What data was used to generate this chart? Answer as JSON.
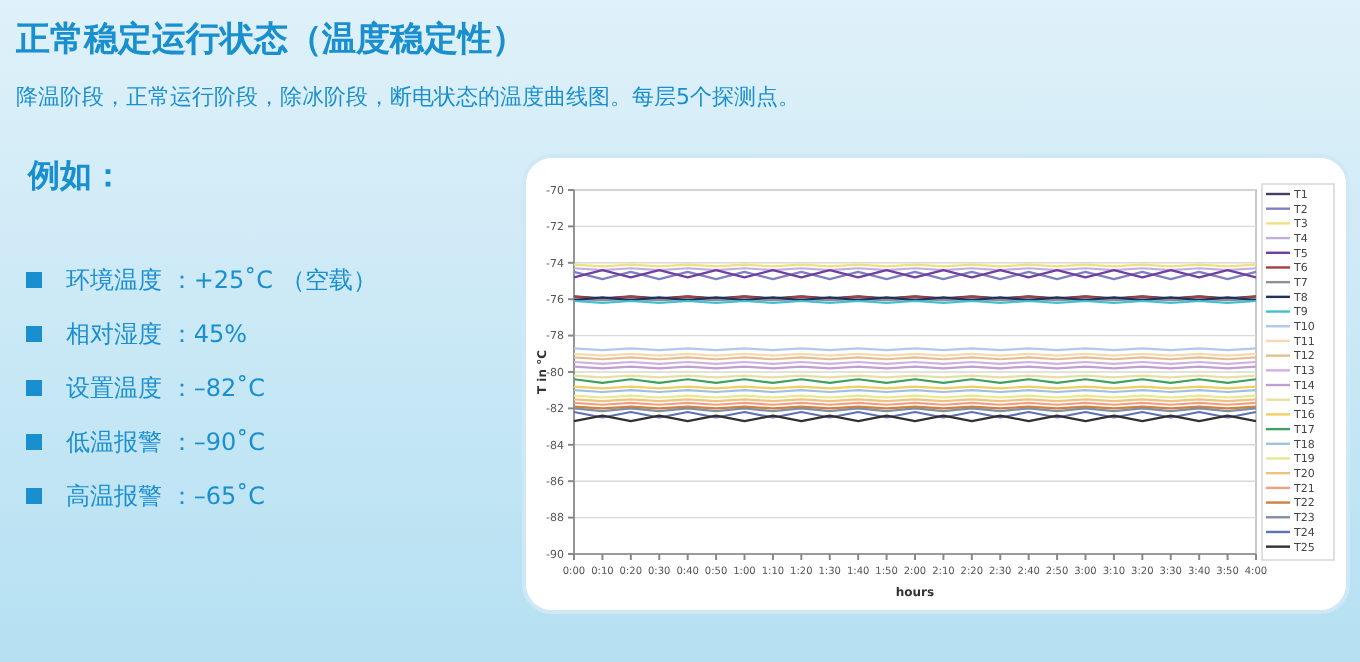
{
  "chart_data": {
    "type": "line",
    "title": "正常稳定运行状态（温度稳定性）",
    "subtitle": "降温阶段，正常运行阶段，除冰阶段，断电状态的温度曲线图。每层5个探测点。",
    "annotations": [
      "例如：",
      "环境温度 ：+25˚C （空载）",
      "相对湿度 ：45%",
      "设置温度 ：–82˚C",
      "低温报警 ：–90˚C",
      "高温报警 ：–65˚C"
    ],
    "xlabel": "hours",
    "ylabel": "T in °C",
    "ylim": [
      -90,
      -70
    ],
    "yticks": [
      -90,
      -88,
      -86,
      -84,
      -82,
      -80,
      -78,
      -76,
      -74,
      -72,
      -70
    ],
    "xlim": [
      0,
      4
    ],
    "xticks": [
      {
        "value": 0,
        "label": "0:00"
      },
      {
        "value": 0.1667,
        "label": "0:10"
      },
      {
        "value": 0.3333,
        "label": "0:20"
      },
      {
        "value": 0.5,
        "label": "0:30"
      },
      {
        "value": 0.6667,
        "label": "0:40"
      },
      {
        "value": 0.8333,
        "label": "0:50"
      },
      {
        "value": 1,
        "label": "1:00"
      },
      {
        "value": 1.1667,
        "label": "1:10"
      },
      {
        "value": 1.3333,
        "label": "1:20"
      },
      {
        "value": 1.5,
        "label": "1:30"
      },
      {
        "value": 1.6667,
        "label": "1:40"
      },
      {
        "value": 1.8333,
        "label": "1:50"
      },
      {
        "value": 2,
        "label": "2:00"
      },
      {
        "value": 2.1667,
        "label": "2:10"
      },
      {
        "value": 2.3333,
        "label": "2:20"
      },
      {
        "value": 2.5,
        "label": "2:30"
      },
      {
        "value": 2.6667,
        "label": "2:40"
      },
      {
        "value": 2.8333,
        "label": "2:50"
      },
      {
        "value": 3,
        "label": "3:00"
      },
      {
        "value": 3.1667,
        "label": "3:10"
      },
      {
        "value": 3.3333,
        "label": "3:20"
      },
      {
        "value": 3.5,
        "label": "3:30"
      },
      {
        "value": 3.6667,
        "label": "3:40"
      },
      {
        "value": 3.8333,
        "label": "3:50"
      },
      {
        "value": 4,
        "label": "4:00"
      }
    ],
    "x": [
      0,
      0.1667,
      0.3333,
      0.5,
      0.6667,
      0.8333,
      1,
      1.1667,
      1.3333,
      1.5,
      1.6667,
      1.8333,
      2,
      2.1667,
      2.3333,
      2.5,
      2.6667,
      2.8333,
      3,
      3.1667,
      3.3333,
      3.5,
      3.6667,
      3.8333,
      4
    ],
    "grid": "y",
    "legend": "right",
    "marker": "none",
    "line_style": "solid",
    "series": [
      {
        "name": "T1",
        "color": "#404060",
        "values": [
          -75.85,
          -75.95,
          -75.85,
          -75.95,
          -75.85,
          -75.95,
          -75.85,
          -75.95,
          -75.85,
          -75.95,
          -75.85,
          -75.95,
          -75.85,
          -75.95,
          -75.85,
          -75.95,
          -75.85,
          -75.95,
          -75.85,
          -75.95,
          -75.85,
          -75.95,
          -75.85,
          -75.95,
          -75.85
        ]
      },
      {
        "name": "T2",
        "color": "#8080c0",
        "values": [
          -74.5,
          -74.9,
          -74.5,
          -74.9,
          -74.5,
          -74.9,
          -74.5,
          -74.9,
          -74.5,
          -74.9,
          -74.5,
          -74.9,
          -74.5,
          -74.9,
          -74.5,
          -74.9,
          -74.5,
          -74.9,
          -74.5,
          -74.9,
          -74.5,
          -74.9,
          -74.5,
          -74.9,
          -74.5
        ]
      },
      {
        "name": "T3",
        "color": "#f0e080",
        "values": [
          -74.1,
          -74.2,
          -74.1,
          -74.2,
          -74.1,
          -74.2,
          -74.1,
          -74.2,
          -74.1,
          -74.2,
          -74.1,
          -74.2,
          -74.1,
          -74.2,
          -74.1,
          -74.2,
          -74.1,
          -74.2,
          -74.1,
          -74.2,
          -74.1,
          -74.2,
          -74.1,
          -74.2,
          -74.1
        ]
      },
      {
        "name": "T4",
        "color": "#c0b0e0",
        "values": [
          -74.3,
          -74.4,
          -74.3,
          -74.4,
          -74.3,
          -74.4,
          -74.3,
          -74.4,
          -74.3,
          -74.4,
          -74.3,
          -74.4,
          -74.3,
          -74.4,
          -74.3,
          -74.4,
          -74.3,
          -74.4,
          -74.3,
          -74.4,
          -74.3,
          -74.4,
          -74.3,
          -74.4,
          -74.3
        ]
      },
      {
        "name": "T5",
        "color": "#7040a0",
        "values": [
          -74.8,
          -74.4,
          -74.8,
          -74.4,
          -74.8,
          -74.4,
          -74.8,
          -74.4,
          -74.8,
          -74.4,
          -74.8,
          -74.4,
          -74.8,
          -74.4,
          -74.8,
          -74.4,
          -74.8,
          -74.4,
          -74.8,
          -74.4,
          -74.8,
          -74.4,
          -74.8,
          -74.4,
          -74.8
        ]
      },
      {
        "name": "T6",
        "color": "#a04040",
        "values": [
          -75.85,
          -76,
          -75.85,
          -76,
          -75.85,
          -76,
          -75.85,
          -76,
          -75.85,
          -76,
          -75.85,
          -76,
          -75.85,
          -76,
          -75.85,
          -76,
          -75.85,
          -76,
          -75.85,
          -76,
          -75.85,
          -76,
          -75.85,
          -76,
          -75.85
        ]
      },
      {
        "name": "T7",
        "color": "#909090",
        "values": [
          -76,
          -76.05,
          -76,
          -76.05,
          -76,
          -76.05,
          -76,
          -76.05,
          -76,
          -76.05,
          -76,
          -76.05,
          -76,
          -76.05,
          -76,
          -76.05,
          -76,
          -76.05,
          -76,
          -76.05,
          -76,
          -76.05,
          -76,
          -76.05,
          -76
        ]
      },
      {
        "name": "T8",
        "color": "#203060",
        "values": [
          -76.05,
          -75.9,
          -76.05,
          -75.9,
          -76.05,
          -75.9,
          -76.05,
          -75.9,
          -76.05,
          -75.9,
          -76.05,
          -75.9,
          -76.05,
          -75.9,
          -76.05,
          -75.9,
          -76.05,
          -75.9,
          -76.05,
          -75.9,
          -76.05,
          -75.9,
          -76.05,
          -75.9,
          -76.05
        ]
      },
      {
        "name": "T9",
        "color": "#40c0d0",
        "values": [
          -76.1,
          -76.2,
          -76.1,
          -76.2,
          -76.1,
          -76.2,
          -76.1,
          -76.2,
          -76.1,
          -76.2,
          -76.1,
          -76.2,
          -76.1,
          -76.2,
          -76.1,
          -76.2,
          -76.1,
          -76.2,
          -76.1,
          -76.2,
          -76.1,
          -76.2,
          -76.1,
          -76.2,
          -76.1
        ]
      },
      {
        "name": "T10",
        "color": "#b0c8f0",
        "values": [
          -78.7,
          -78.8,
          -78.7,
          -78.8,
          -78.7,
          -78.8,
          -78.7,
          -78.8,
          -78.7,
          -78.8,
          -78.7,
          -78.8,
          -78.7,
          -78.8,
          -78.7,
          -78.8,
          -78.7,
          -78.8,
          -78.7,
          -78.8,
          -78.7,
          -78.8,
          -78.7,
          -78.8,
          -78.7
        ]
      },
      {
        "name": "T11",
        "color": "#f8d8b0",
        "values": [
          -79,
          -79.1,
          -79,
          -79.1,
          -79,
          -79.1,
          -79,
          -79.1,
          -79,
          -79.1,
          -79,
          -79.1,
          -79,
          -79.1,
          -79,
          -79.1,
          -79,
          -79.1,
          -79,
          -79.1,
          -79,
          -79.1,
          -79,
          -79.1,
          -79
        ]
      },
      {
        "name": "T12",
        "color": "#e0c090",
        "values": [
          -79.2,
          -79.3,
          -79.2,
          -79.3,
          -79.2,
          -79.3,
          -79.2,
          -79.3,
          -79.2,
          -79.3,
          -79.2,
          -79.3,
          -79.2,
          -79.3,
          -79.2,
          -79.3,
          -79.2,
          -79.3,
          -79.2,
          -79.3,
          -79.2,
          -79.3,
          -79.2,
          -79.3,
          -79.2
        ]
      },
      {
        "name": "T13",
        "color": "#d0b0e0",
        "values": [
          -79.45,
          -79.55,
          -79.45,
          -79.55,
          -79.45,
          -79.55,
          -79.45,
          -79.55,
          -79.45,
          -79.55,
          -79.45,
          -79.55,
          -79.45,
          -79.55,
          -79.45,
          -79.55,
          -79.45,
          -79.55,
          -79.45,
          -79.55,
          -79.45,
          -79.55,
          -79.45,
          -79.55,
          -79.45
        ]
      },
      {
        "name": "T14",
        "color": "#c0a0d0",
        "values": [
          -79.7,
          -79.8,
          -79.7,
          -79.8,
          -79.7,
          -79.8,
          -79.7,
          -79.8,
          -79.7,
          -79.8,
          -79.7,
          -79.8,
          -79.7,
          -79.8,
          -79.7,
          -79.8,
          -79.7,
          -79.8,
          -79.7,
          -79.8,
          -79.7,
          -79.8,
          -79.7,
          -79.8,
          -79.7
        ]
      },
      {
        "name": "T15",
        "color": "#e8e0a0",
        "values": [
          -80.2,
          -80.3,
          -80.2,
          -80.3,
          -80.2,
          -80.3,
          -80.2,
          -80.3,
          -80.2,
          -80.3,
          -80.2,
          -80.3,
          -80.2,
          -80.3,
          -80.2,
          -80.3,
          -80.2,
          -80.3,
          -80.2,
          -80.3,
          -80.2,
          -80.3,
          -80.2,
          -80.3,
          -80.2
        ]
      },
      {
        "name": "T16",
        "color": "#f0d060",
        "values": [
          -80.8,
          -80.9,
          -80.8,
          -80.9,
          -80.8,
          -80.9,
          -80.8,
          -80.9,
          -80.8,
          -80.9,
          -80.8,
          -80.9,
          -80.8,
          -80.9,
          -80.8,
          -80.9,
          -80.8,
          -80.9,
          -80.8,
          -80.9,
          -80.8,
          -80.9,
          -80.8,
          -80.9,
          -80.8
        ]
      },
      {
        "name": "T17",
        "color": "#40a060",
        "values": [
          -80.4,
          -80.6,
          -80.4,
          -80.6,
          -80.4,
          -80.6,
          -80.4,
          -80.6,
          -80.4,
          -80.6,
          -80.4,
          -80.6,
          -80.4,
          -80.6,
          -80.4,
          -80.6,
          -80.4,
          -80.6,
          -80.4,
          -80.6,
          -80.4,
          -80.6,
          -80.4,
          -80.6,
          -80.4
        ]
      },
      {
        "name": "T18",
        "color": "#a0c0e0",
        "values": [
          -81,
          -81.1,
          -81,
          -81.1,
          -81,
          -81.1,
          -81,
          -81.1,
          -81,
          -81.1,
          -81,
          -81.1,
          -81,
          -81.1,
          -81,
          -81.1,
          -81,
          -81.1,
          -81,
          -81.1,
          -81,
          -81.1,
          -81,
          -81.1,
          -81
        ]
      },
      {
        "name": "T19",
        "color": "#e8e890",
        "values": [
          -81.3,
          -81.4,
          -81.3,
          -81.4,
          -81.3,
          -81.4,
          -81.3,
          -81.4,
          -81.3,
          -81.4,
          -81.3,
          -81.4,
          -81.3,
          -81.4,
          -81.3,
          -81.4,
          -81.3,
          -81.4,
          -81.3,
          -81.4,
          -81.3,
          -81.4,
          -81.3,
          -81.4,
          -81.3
        ]
      },
      {
        "name": "T20",
        "color": "#f0c080",
        "values": [
          -81.5,
          -81.6,
          -81.5,
          -81.6,
          -81.5,
          -81.6,
          -81.5,
          -81.6,
          -81.5,
          -81.6,
          -81.5,
          -81.6,
          -81.5,
          -81.6,
          -81.5,
          -81.6,
          -81.5,
          -81.6,
          -81.5,
          -81.6,
          -81.5,
          -81.6,
          -81.5,
          -81.6,
          -81.5
        ]
      },
      {
        "name": "T21",
        "color": "#f0a080",
        "values": [
          -81.7,
          -81.8,
          -81.7,
          -81.8,
          -81.7,
          -81.8,
          -81.7,
          -81.8,
          -81.7,
          -81.8,
          -81.7,
          -81.8,
          -81.7,
          -81.8,
          -81.7,
          -81.8,
          -81.7,
          -81.8,
          -81.7,
          -81.8,
          -81.7,
          -81.8,
          -81.7,
          -81.8,
          -81.7
        ]
      },
      {
        "name": "T22",
        "color": "#d08040",
        "values": [
          -81.9,
          -82,
          -81.9,
          -82,
          -81.9,
          -82,
          -81.9,
          -82,
          -81.9,
          -82,
          -81.9,
          -82,
          -81.9,
          -82,
          -81.9,
          -82,
          -81.9,
          -82,
          -81.9,
          -82,
          -81.9,
          -82,
          -81.9,
          -82,
          -81.9
        ]
      },
      {
        "name": "T23",
        "color": "#8090a0",
        "values": [
          -82,
          -82.15,
          -82,
          -82.15,
          -82,
          -82.15,
          -82,
          -82.15,
          -82,
          -82.15,
          -82,
          -82.15,
          -82,
          -82.15,
          -82,
          -82.15,
          -82,
          -82.15,
          -82,
          -82.15,
          -82,
          -82.15,
          -82,
          -82.15,
          -82
        ]
      },
      {
        "name": "T24",
        "color": "#6070b0",
        "values": [
          -82.2,
          -82.5,
          -82.2,
          -82.5,
          -82.2,
          -82.5,
          -82.2,
          -82.5,
          -82.2,
          -82.5,
          -82.2,
          -82.5,
          -82.2,
          -82.5,
          -82.2,
          -82.5,
          -82.2,
          -82.5,
          -82.2,
          -82.5,
          -82.2,
          -82.5,
          -82.2,
          -82.5,
          -82.2
        ]
      },
      {
        "name": "T25",
        "color": "#303030",
        "values": [
          -82.7,
          -82.4,
          -82.7,
          -82.4,
          -82.7,
          -82.4,
          -82.7,
          -82.4,
          -82.7,
          -82.4,
          -82.7,
          -82.4,
          -82.7,
          -82.4,
          -82.7,
          -82.4,
          -82.7,
          -82.4,
          -82.7,
          -82.4,
          -82.7,
          -82.4,
          -82.7,
          -82.4,
          -82.7
        ]
      }
    ]
  }
}
